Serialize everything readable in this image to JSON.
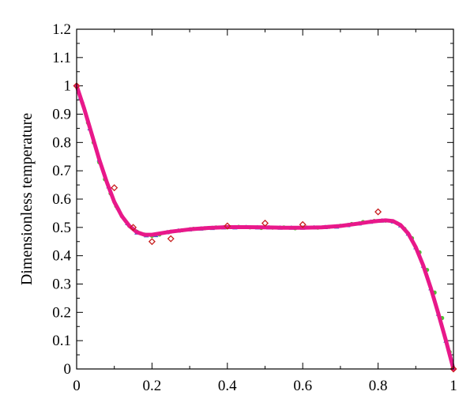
{
  "chart_data": {
    "type": "scatter",
    "title": "",
    "xlabel": "",
    "ylabel": "Dimensionless temperature",
    "xlim": [
      0,
      1
    ],
    "ylim": [
      0,
      1.2
    ],
    "x_ticks": [
      "0",
      "0.2",
      "0.4",
      "0.6",
      "0.8",
      "1"
    ],
    "y_ticks": [
      "0",
      "0.1",
      "0.2",
      "0.3",
      "0.4",
      "0.5",
      "0.6",
      "0.7",
      "0.8",
      "0.9",
      "1",
      "1.1",
      "1.2"
    ],
    "grid": false,
    "legend": "none",
    "series": [
      {
        "marker": "line",
        "color": "#e8188a",
        "x": [
          0.0,
          0.02,
          0.04,
          0.06,
          0.08,
          0.1,
          0.12,
          0.14,
          0.16,
          0.18,
          0.2,
          0.25,
          0.3,
          0.35,
          0.4,
          0.45,
          0.5,
          0.55,
          0.6,
          0.65,
          0.7,
          0.75,
          0.78,
          0.8,
          0.82,
          0.84,
          0.86,
          0.88,
          0.9,
          0.92,
          0.94,
          0.96,
          0.98,
          1.0
        ],
        "y": [
          1.0,
          0.92,
          0.83,
          0.74,
          0.66,
          0.59,
          0.54,
          0.505,
          0.483,
          0.474,
          0.474,
          0.485,
          0.493,
          0.498,
          0.501,
          0.501,
          0.5,
          0.499,
          0.499,
          0.5,
          0.505,
          0.514,
          0.52,
          0.523,
          0.525,
          0.522,
          0.508,
          0.478,
          0.43,
          0.365,
          0.285,
          0.195,
          0.1,
          0.0
        ]
      },
      {
        "marker": "circle",
        "color": "#4ec236",
        "x": [
          0.0,
          0.015,
          0.03,
          0.045,
          0.06,
          0.075,
          0.09,
          0.105,
          0.12,
          0.14,
          0.16,
          0.18,
          0.2,
          0.22,
          0.25,
          0.28,
          0.31,
          0.34,
          0.37,
          0.4,
          0.43,
          0.46,
          0.49,
          0.52,
          0.55,
          0.58,
          0.61,
          0.64,
          0.67,
          0.7,
          0.73,
          0.76,
          0.79,
          0.82,
          0.85,
          0.87,
          0.89,
          0.91,
          0.93,
          0.95,
          0.97,
          0.99
        ],
        "y": [
          1.0,
          0.94,
          0.87,
          0.8,
          0.73,
          0.67,
          0.62,
          0.575,
          0.54,
          0.505,
          0.485,
          0.475,
          0.47,
          0.475,
          0.485,
          0.49,
          0.495,
          0.497,
          0.5,
          0.5,
          0.502,
          0.5,
          0.498,
          0.499,
          0.5,
          0.497,
          0.5,
          0.499,
          0.502,
          0.506,
          0.512,
          0.519,
          0.523,
          0.524,
          0.515,
          0.495,
          0.462,
          0.412,
          0.35,
          0.27,
          0.18,
          0.06
        ]
      },
      {
        "marker": "triangle",
        "color": "#3a5fc8",
        "x": [
          0.01,
          0.035,
          0.06,
          0.085,
          0.11,
          0.135,
          0.16,
          0.185,
          0.21,
          0.24,
          0.27,
          0.3,
          0.33,
          0.36,
          0.39,
          0.42,
          0.45,
          0.48,
          0.51,
          0.54,
          0.57,
          0.6,
          0.63,
          0.66,
          0.69,
          0.72,
          0.75,
          0.78,
          0.81,
          0.84,
          0.86,
          0.88,
          0.9,
          0.92,
          0.94,
          0.96,
          0.98
        ],
        "y": [
          0.96,
          0.85,
          0.74,
          0.645,
          0.57,
          0.515,
          0.482,
          0.472,
          0.473,
          0.483,
          0.489,
          0.493,
          0.496,
          0.498,
          0.5,
          0.5,
          0.501,
          0.5,
          0.5,
          0.499,
          0.499,
          0.499,
          0.5,
          0.501,
          0.503,
          0.508,
          0.514,
          0.52,
          0.524,
          0.521,
          0.507,
          0.478,
          0.43,
          0.365,
          0.285,
          0.195,
          0.1
        ]
      },
      {
        "marker": "diamond",
        "color": "#c81e1e",
        "x": [
          0.0,
          0.1,
          0.15,
          0.2,
          0.25,
          0.4,
          0.5,
          0.6,
          0.8,
          1.0
        ],
        "y": [
          1.0,
          0.64,
          0.5,
          0.45,
          0.46,
          0.505,
          0.515,
          0.51,
          0.555,
          0.0
        ]
      }
    ]
  }
}
